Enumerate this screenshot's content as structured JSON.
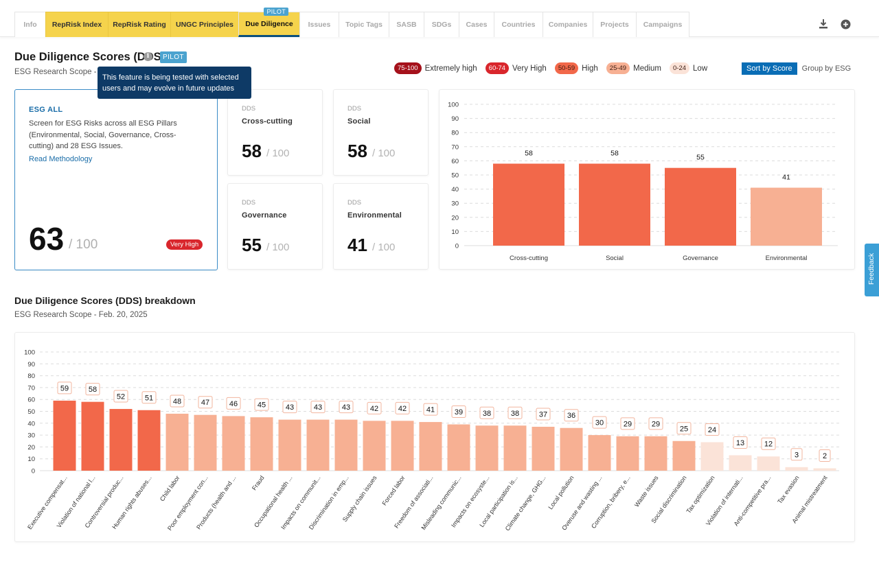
{
  "tabs": [
    {
      "label": "Info",
      "style": "plain"
    },
    {
      "label": "RepRisk Index",
      "style": "yellow"
    },
    {
      "label": "RepRisk Rating",
      "style": "yellow"
    },
    {
      "label": "UNGC Principles",
      "style": "yellow"
    },
    {
      "label": "Due Diligence",
      "style": "active",
      "badge": "PILOT"
    },
    {
      "label": "Issues",
      "style": "plain"
    },
    {
      "label": "Topic Tags",
      "style": "plain"
    },
    {
      "label": "SASB",
      "style": "plain"
    },
    {
      "label": "SDGs",
      "style": "plain"
    },
    {
      "label": "Cases",
      "style": "plain"
    },
    {
      "label": "Countries",
      "style": "plain"
    },
    {
      "label": "Companies",
      "style": "plain"
    },
    {
      "label": "Projects",
      "style": "plain"
    },
    {
      "label": "Campaigns",
      "style": "plain"
    }
  ],
  "header": {
    "title": "Due Diligence Scores (DDS)",
    "pilot": "PILOT",
    "subtitle": "ESG Research Scope - F",
    "tooltip": "This feature is being tested with selected users and may evolve in future updates"
  },
  "legend": [
    {
      "range": "75-100",
      "label": "Extremely high",
      "bg": "#a5111b",
      "fg": "#ffffff"
    },
    {
      "range": "60-74",
      "label": "Very High",
      "bg": "#d9262c",
      "fg": "#ffffff"
    },
    {
      "range": "50-59",
      "label": "High",
      "bg": "#f2684a",
      "fg": "#3a1a10"
    },
    {
      "range": "25-49",
      "label": "Medium",
      "bg": "#f7b093",
      "fg": "#3a1a10"
    },
    {
      "range": "0-24",
      "label": "Low",
      "bg": "#fbe3d8",
      "fg": "#3a1a10"
    }
  ],
  "sort": {
    "active": "Sort by Score",
    "inactive": "Group by ESG"
  },
  "main_card": {
    "title": "ESG ALL",
    "description": "Screen for ESG Risks across all ESG Pillars (Environmental, Social, Governance, Cross-cutting) and 28 ESG Issues.",
    "link": "Read Methodology",
    "score": "63",
    "out_of": "/ 100",
    "badge": "Very High"
  },
  "sub_cards": [
    {
      "label": "DDS",
      "name": "Cross-cutting",
      "score": "58",
      "out_of": "/ 100"
    },
    {
      "label": "DDS",
      "name": "Social",
      "score": "58",
      "out_of": "/ 100"
    },
    {
      "label": "DDS",
      "name": "Governance",
      "score": "55",
      "out_of": "/ 100"
    },
    {
      "label": "DDS",
      "name": "Environmental",
      "score": "41",
      "out_of": "/ 100"
    }
  ],
  "breakdown": {
    "title": "Due Diligence Scores (DDS) breakdown",
    "subtitle": "ESG Research Scope - Feb. 20, 2025"
  },
  "feedback": "Feedback",
  "chart_data": [
    {
      "type": "bar",
      "categories": [
        "Cross-cutting",
        "Social",
        "Governance",
        "Environmental"
      ],
      "values": [
        58,
        58,
        55,
        41
      ],
      "ylim": [
        0,
        100
      ],
      "yticks": [
        0,
        10,
        20,
        30,
        40,
        50,
        60,
        70,
        80,
        90,
        100
      ],
      "grid": true
    },
    {
      "type": "bar",
      "categories": [
        "Executive compensat...",
        "Violation of national l...",
        "Controversial produc...",
        "Human rights abuses...",
        "Child labor",
        "Poor employment con...",
        "Products (health and ...",
        "Fraud",
        "Occupational health ...",
        "Impacts on communit...",
        "Discrimination in emp...",
        "Supply chain issues",
        "Forced labor",
        "Freedom of associati...",
        "Misleading communic...",
        "Impacts on ecosyste...",
        "Local participation is...",
        "Climate change, GHG...",
        "Local pollution",
        "Overuse and wasting ...",
        "Corruption, bribery, e...",
        "Waste issues",
        "Social discrimination",
        "Tax optimization",
        "Violation of internati...",
        "Anti-competitive pra...",
        "Tax evasion",
        "Animal mistreatment"
      ],
      "values": [
        59,
        58,
        52,
        51,
        48,
        47,
        46,
        45,
        43,
        43,
        43,
        42,
        42,
        41,
        39,
        38,
        38,
        37,
        36,
        30,
        29,
        29,
        25,
        24,
        13,
        12,
        3,
        2
      ],
      "ylim": [
        0,
        100
      ],
      "yticks": [
        0,
        10,
        20,
        30,
        40,
        50,
        60,
        70,
        80,
        90,
        100
      ],
      "grid": true
    }
  ]
}
